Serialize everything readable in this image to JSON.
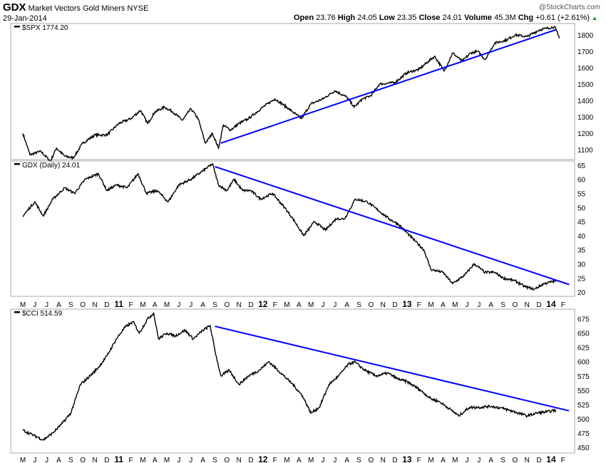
{
  "header": {
    "symbol": "GDX",
    "name": "Market Vectors Gold Miners",
    "exchange": "NYSE",
    "date": "29-Jan-2014",
    "watermark": "@StockCharts.com",
    "open_label": "Open",
    "open": "23.76",
    "high_label": "High",
    "high": "24.05",
    "low_label": "Low",
    "low": "23.35",
    "close_label": "Close",
    "close": "24.01",
    "volume_label": "Volume",
    "volume": "45.3M",
    "chg_label": "Chg",
    "chg": "+0.61 (+2.61%)",
    "up_color": "#008000"
  },
  "chart_data": [
    {
      "type": "line",
      "title": "$SPX 1774.20",
      "ylim": [
        1040,
        1870
      ],
      "yticks": [
        1100,
        1200,
        1300,
        1400,
        1500,
        1600,
        1700,
        1800
      ],
      "x_unit": "months since May 2010",
      "points": [
        [
          0,
          1200
        ],
        [
          0.6,
          1070
        ],
        [
          1.5,
          1090
        ],
        [
          2.3,
          1030
        ],
        [
          2.8,
          1110
        ],
        [
          3.5,
          1060
        ],
        [
          4.2,
          1050
        ],
        [
          5,
          1140
        ],
        [
          6,
          1190
        ],
        [
          7,
          1190
        ],
        [
          8,
          1260
        ],
        [
          9,
          1290
        ],
        [
          9.8,
          1340
        ],
        [
          10.4,
          1260
        ],
        [
          11,
          1330
        ],
        [
          11.8,
          1360
        ],
        [
          12.5,
          1330
        ],
        [
          13.3,
          1280
        ],
        [
          14,
          1350
        ],
        [
          14.6,
          1290
        ],
        [
          15.2,
          1140
        ],
        [
          15.8,
          1200
        ],
        [
          16.3,
          1110
        ],
        [
          16.7,
          1250
        ],
        [
          17.3,
          1220
        ],
        [
          18,
          1260
        ],
        [
          18.8,
          1290
        ],
        [
          20,
          1360
        ],
        [
          21,
          1410
        ],
        [
          21.6,
          1380
        ],
        [
          22.5,
          1330
        ],
        [
          23.2,
          1290
        ],
        [
          24,
          1380
        ],
        [
          25,
          1410
        ],
        [
          26,
          1460
        ],
        [
          27,
          1420
        ],
        [
          27.6,
          1360
        ],
        [
          28.3,
          1410
        ],
        [
          29,
          1430
        ],
        [
          29.7,
          1500
        ],
        [
          31,
          1510
        ],
        [
          32,
          1570
        ],
        [
          33,
          1590
        ],
        [
          33.8,
          1640
        ],
        [
          34.3,
          1670
        ],
        [
          35.1,
          1580
        ],
        [
          35.8,
          1690
        ],
        [
          36.6,
          1640
        ],
        [
          37.3,
          1690
        ],
        [
          37.9,
          1700
        ],
        [
          38.5,
          1650
        ],
        [
          39.3,
          1750
        ],
        [
          40.3,
          1770
        ],
        [
          41,
          1800
        ],
        [
          42,
          1790
        ],
        [
          43,
          1830
        ],
        [
          43.6,
          1840
        ],
        [
          44.3,
          1850
        ],
        [
          44.7,
          1780
        ]
      ],
      "trendline": [
        [
          16.5,
          1140
        ],
        [
          44.4,
          1832
        ]
      ],
      "line_color": "#000000",
      "trend_color": "#0000ff"
    },
    {
      "type": "line",
      "title": "GDX (Daily) 24.01",
      "ylim": [
        18.5,
        66.5
      ],
      "yticks": [
        20,
        25,
        30,
        35,
        40,
        45,
        50,
        55,
        60,
        65
      ],
      "points": [
        [
          0,
          47
        ],
        [
          1,
          52
        ],
        [
          1.7,
          47
        ],
        [
          2.5,
          53
        ],
        [
          3.5,
          57
        ],
        [
          4.3,
          55
        ],
        [
          5.2,
          60
        ],
        [
          6.3,
          62
        ],
        [
          7,
          56
        ],
        [
          7.8,
          58
        ],
        [
          8.7,
          57
        ],
        [
          9.6,
          62
        ],
        [
          10.3,
          55
        ],
        [
          11.2,
          56
        ],
        [
          12.1,
          52
        ],
        [
          13,
          58
        ],
        [
          14,
          60
        ],
        [
          15,
          63
        ],
        [
          15.8,
          65.5
        ],
        [
          16.3,
          58
        ],
        [
          17,
          56
        ],
        [
          17.6,
          60
        ],
        [
          18.3,
          56
        ],
        [
          19,
          56
        ],
        [
          19.8,
          53
        ],
        [
          20.8,
          55
        ],
        [
          21.8,
          50
        ],
        [
          22.5,
          46
        ],
        [
          23.4,
          40
        ],
        [
          24.3,
          45
        ],
        [
          25.2,
          42
        ],
        [
          26.1,
          46
        ],
        [
          26.8,
          46
        ],
        [
          27.7,
          53
        ],
        [
          28.7,
          52
        ],
        [
          29.6,
          49
        ],
        [
          30.5,
          46
        ],
        [
          31.3,
          44
        ],
        [
          32,
          41
        ],
        [
          32.7,
          38
        ],
        [
          33.4,
          35
        ],
        [
          34,
          28
        ],
        [
          35,
          27
        ],
        [
          35.8,
          23
        ],
        [
          36.8,
          26
        ],
        [
          37.6,
          30
        ],
        [
          38.5,
          27
        ],
        [
          39.3,
          27
        ],
        [
          40,
          25
        ],
        [
          41,
          24
        ],
        [
          41.8,
          22
        ],
        [
          42.6,
          21
        ],
        [
          43.4,
          23
        ],
        [
          44.4,
          24
        ]
      ],
      "trendline": [
        [
          16,
          64.5
        ],
        [
          45.5,
          22.7
        ]
      ],
      "line_color": "#000000",
      "trend_color": "#0000ff"
    },
    {
      "type": "line",
      "title": "$CCI 514.59",
      "ylim": [
        440,
        692
      ],
      "yticks": [
        450,
        475,
        500,
        525,
        550,
        575,
        600,
        625,
        650,
        675
      ],
      "points": [
        [
          0,
          480
        ],
        [
          0.8,
          472
        ],
        [
          1.7,
          463
        ],
        [
          2.5,
          475
        ],
        [
          3.2,
          490
        ],
        [
          4,
          510
        ],
        [
          4.8,
          560
        ],
        [
          5.6,
          575
        ],
        [
          6.3,
          590
        ],
        [
          7,
          610
        ],
        [
          7.8,
          640
        ],
        [
          8.5,
          660
        ],
        [
          9.2,
          670
        ],
        [
          9.7,
          650
        ],
        [
          10.4,
          675
        ],
        [
          10.9,
          685
        ],
        [
          11.3,
          640
        ],
        [
          12,
          650
        ],
        [
          12.7,
          645
        ],
        [
          13.5,
          655
        ],
        [
          14.2,
          640
        ],
        [
          15,
          655
        ],
        [
          15.6,
          663
        ],
        [
          16.1,
          610
        ],
        [
          16.5,
          575
        ],
        [
          17.2,
          585
        ],
        [
          18,
          560
        ],
        [
          18.8,
          575
        ],
        [
          19.7,
          585
        ],
        [
          20.5,
          600
        ],
        [
          21.5,
          580
        ],
        [
          22.5,
          560
        ],
        [
          23.3,
          540
        ],
        [
          24,
          510
        ],
        [
          24.7,
          520
        ],
        [
          25.5,
          560
        ],
        [
          26.3,
          575
        ],
        [
          27.1,
          595
        ],
        [
          27.6,
          600
        ],
        [
          28.5,
          585
        ],
        [
          29.4,
          575
        ],
        [
          30.4,
          580
        ],
        [
          31.2,
          570
        ],
        [
          32,
          565
        ],
        [
          33,
          552
        ],
        [
          34,
          535
        ],
        [
          34.7,
          530
        ],
        [
          35.7,
          515
        ],
        [
          36.3,
          505
        ],
        [
          37.2,
          520
        ],
        [
          38,
          520
        ],
        [
          39,
          522
        ],
        [
          40,
          518
        ],
        [
          41,
          512
        ],
        [
          42,
          505
        ],
        [
          42.8,
          510
        ],
        [
          43.6,
          512
        ],
        [
          44.4,
          515
        ]
      ],
      "trendline": [
        [
          16,
          662
        ],
        [
          45.5,
          514
        ]
      ],
      "line_color": "#000000",
      "trend_color": "#0000ff"
    }
  ],
  "x_axis": {
    "labels": [
      "M",
      "J",
      "J",
      "A",
      "S",
      "O",
      "N",
      "D",
      "11",
      "F",
      "M",
      "A",
      "M",
      "J",
      "J",
      "A",
      "S",
      "O",
      "N",
      "D",
      "12",
      "F",
      "M",
      "A",
      "M",
      "J",
      "J",
      "A",
      "S",
      "O",
      "N",
      "D",
      "13",
      "F",
      "M",
      "A",
      "M",
      "J",
      "J",
      "A",
      "S",
      "O",
      "N",
      "D",
      "14",
      "F"
    ],
    "bold_labels": [
      "11",
      "12",
      "13",
      "14"
    ]
  }
}
